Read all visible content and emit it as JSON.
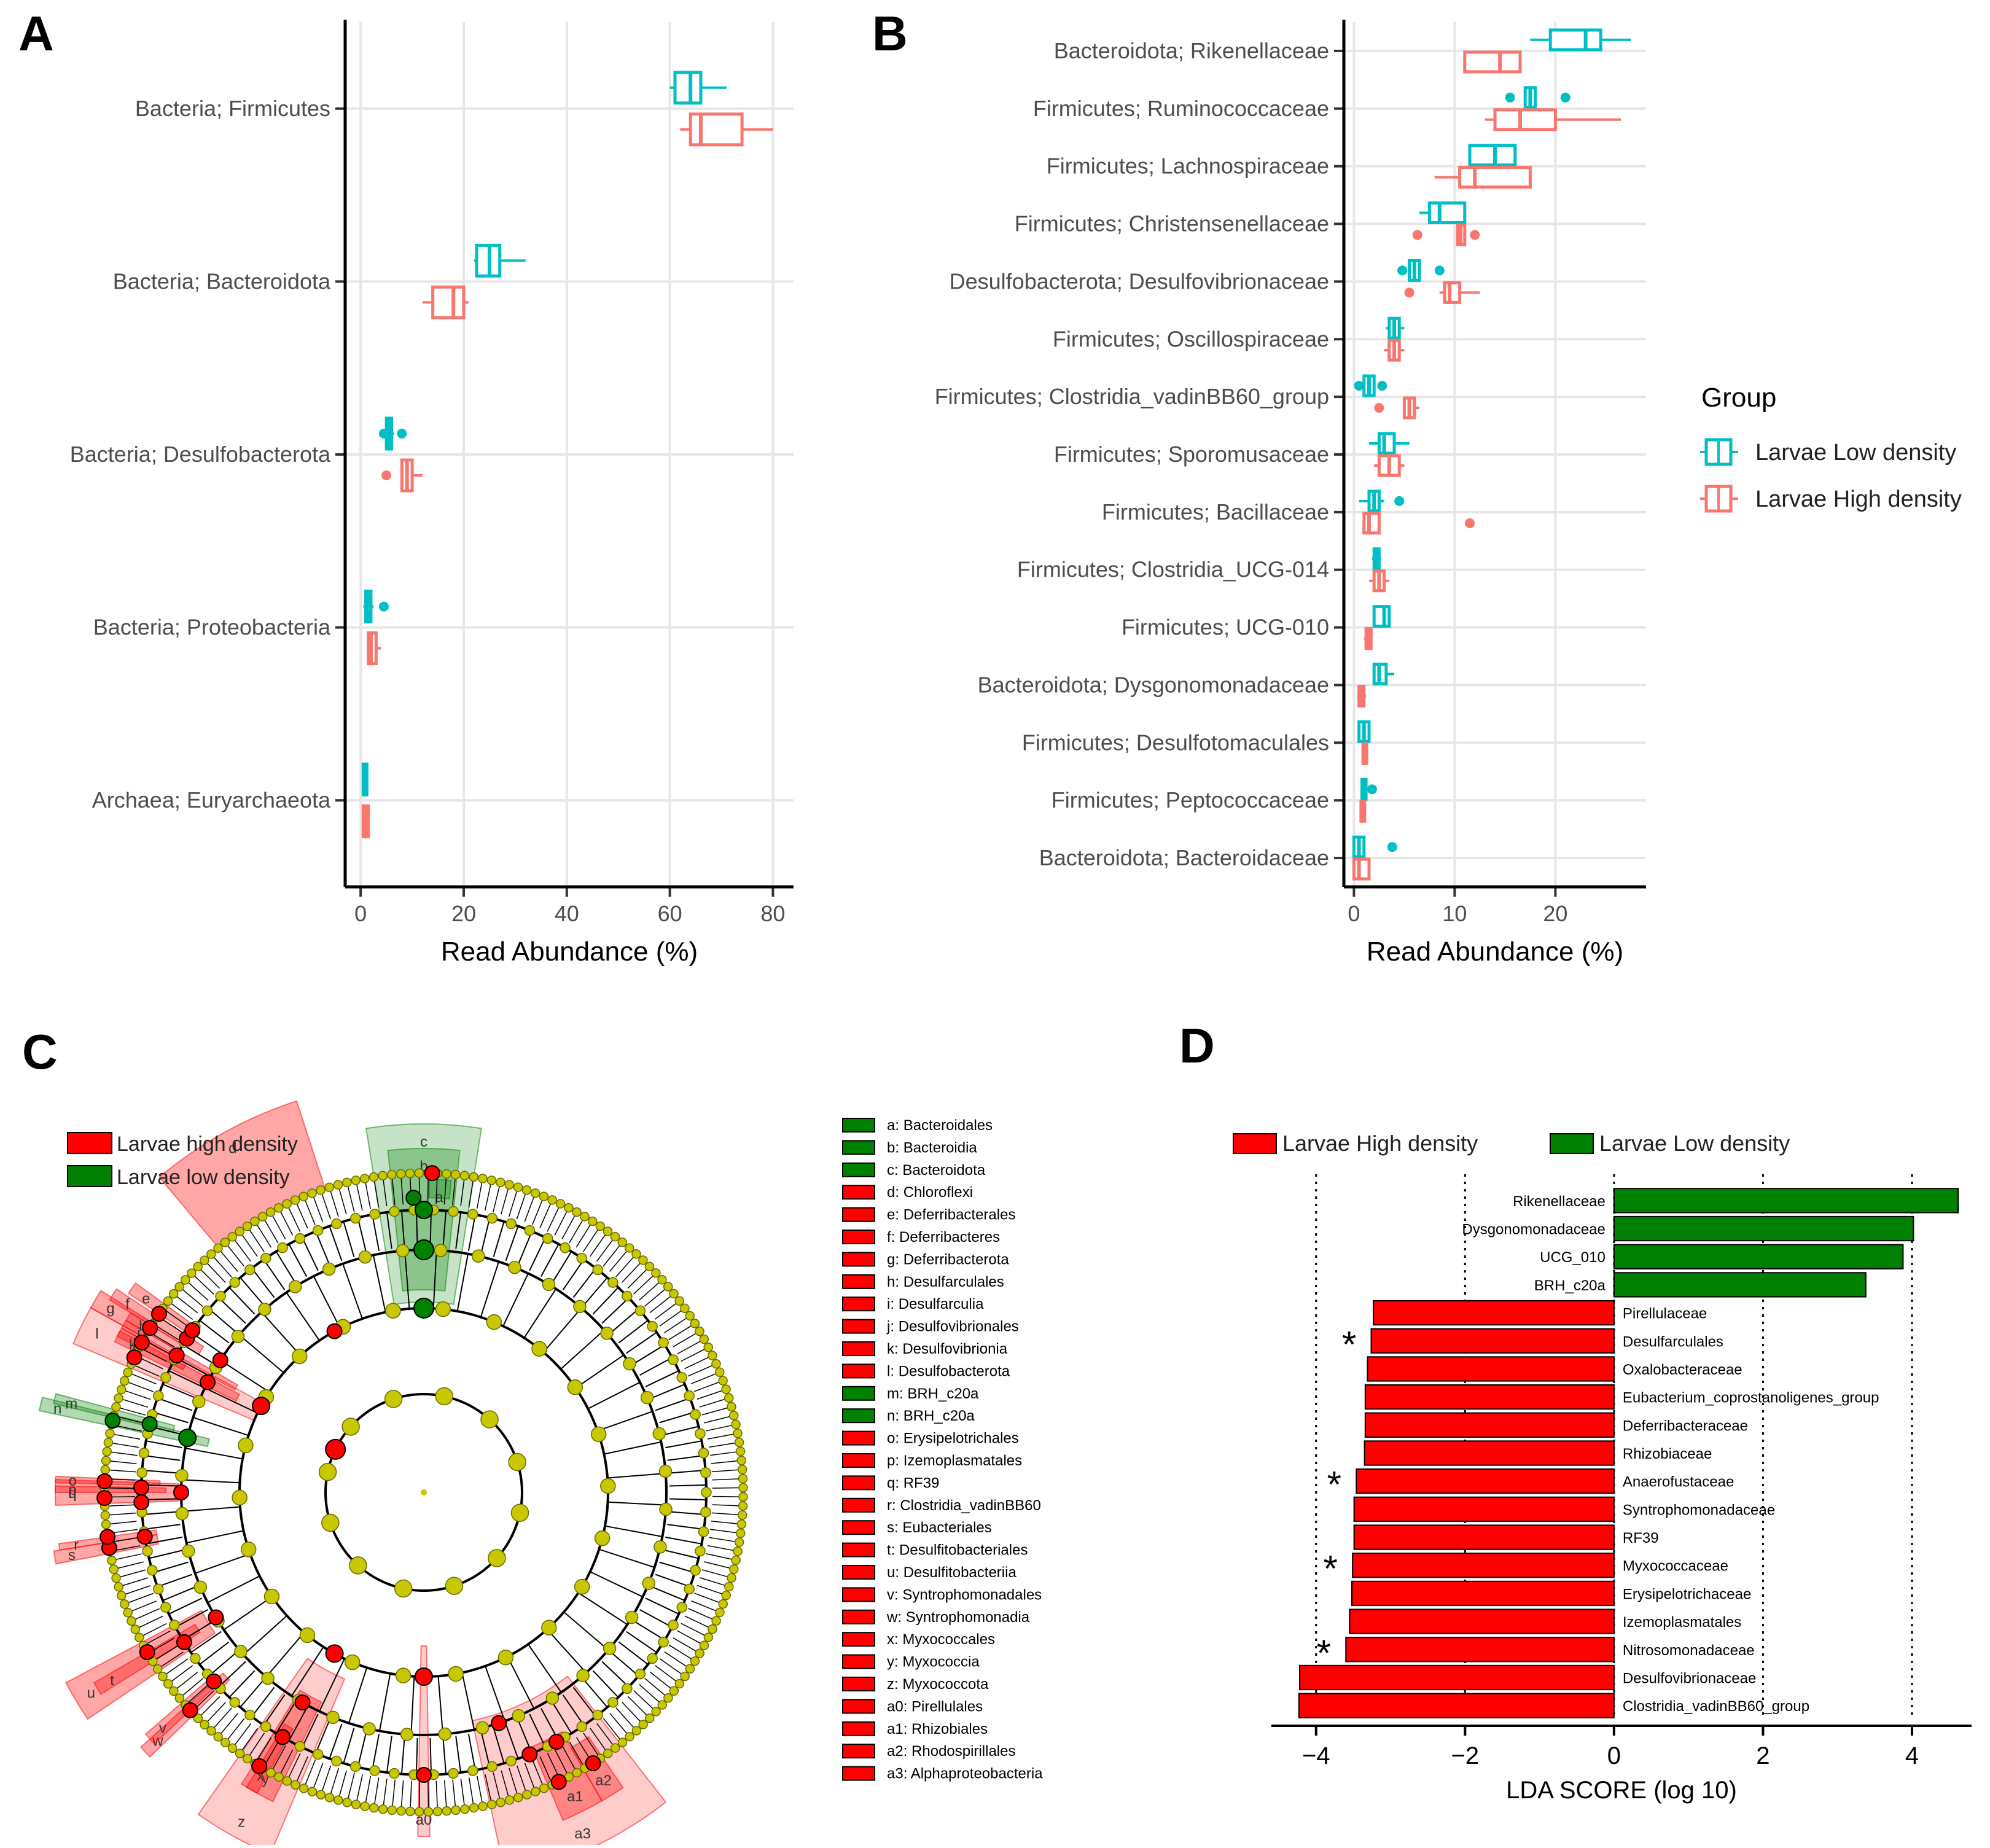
{
  "panels": {
    "A": "A",
    "B": "B",
    "C": "C",
    "D": "D"
  },
  "colors": {
    "low": "#00BFC4",
    "high": "#F8766D",
    "lefse_high": "#FF0000",
    "lefse_low": "#008000",
    "node": "#C8C800"
  },
  "chart_data": [
    {
      "id": "A",
      "type": "boxplot",
      "xlabel": "Read Abundance (%)",
      "xlim": [
        -3,
        84
      ],
      "xticks": [
        0,
        20,
        40,
        60,
        80
      ],
      "categories": [
        "Bacteria; Firmicutes",
        "Bacteria; Bacteroidota",
        "Bacteria; Desulfobacterota",
        "Bacteria; Proteobacteria",
        "Archaea; Euryarchaeota"
      ],
      "series": [
        {
          "name": "Larvae Low  density",
          "boxes": [
            {
              "wmin": 60,
              "q1": 61,
              "med": 64,
              "q3": 66,
              "wmax": 71,
              "out": []
            },
            {
              "wmin": 22,
              "q1": 22.5,
              "med": 25,
              "q3": 27,
              "wmax": 32,
              "out": []
            },
            {
              "wmin": 4.5,
              "q1": 5,
              "med": 5.5,
              "q3": 6,
              "wmax": 6.5,
              "out": [
                4.5,
                8
              ]
            },
            {
              "wmin": 0.5,
              "q1": 1,
              "med": 1.5,
              "q3": 2,
              "wmax": 2.5,
              "out": [
                4.5
              ]
            },
            {
              "wmin": 0.3,
              "q1": 0.5,
              "med": 0.8,
              "q3": 1,
              "wmax": 1.2,
              "out": []
            }
          ]
        },
        {
          "name": "Larvae High  density",
          "boxes": [
            {
              "wmin": 62,
              "q1": 64,
              "med": 66,
              "q3": 74,
              "wmax": 80,
              "out": []
            },
            {
              "wmin": 12,
              "q1": 14,
              "med": 18,
              "q3": 20,
              "wmax": 21,
              "out": []
            },
            {
              "wmin": 8,
              "q1": 8,
              "med": 9,
              "q3": 10,
              "wmax": 12,
              "out": [
                5
              ]
            },
            {
              "wmin": 1.5,
              "q1": 1.5,
              "med": 2,
              "q3": 3,
              "wmax": 4,
              "out": []
            },
            {
              "wmin": 0.5,
              "q1": 0.5,
              "med": 1,
              "q3": 1.5,
              "wmax": 1.7,
              "out": []
            }
          ]
        }
      ]
    },
    {
      "id": "B",
      "type": "boxplot",
      "xlabel": "Read Abundance (%)",
      "xlim": [
        -1,
        29
      ],
      "xticks": [
        0,
        10,
        20
      ],
      "categories": [
        "Bacteroidota; Rikenellaceae",
        "Firmicutes; Ruminococcaceae",
        "Firmicutes; Lachnospiraceae",
        "Firmicutes; Christensenellaceae",
        "Desulfobacterota; Desulfovibrionaceae",
        "Firmicutes; Oscillospiraceae",
        "Firmicutes; Clostridia_vadinBB60_group",
        "Firmicutes; Sporomusaceae",
        "Firmicutes; Bacillaceae",
        "Firmicutes; Clostridia_UCG-014",
        "Firmicutes; UCG-010",
        "Bacteroidota; Dysgonomonadaceae",
        "Firmicutes; Desulfotomaculales",
        "Firmicutes; Peptococcaceae",
        "Bacteroidota; Bacteroidaceae"
      ],
      "series": [
        {
          "name": "Larvae Low  density",
          "boxes": [
            {
              "wmin": 17.5,
              "q1": 19.5,
              "med": 23,
              "q3": 24.5,
              "wmax": 27.5,
              "out": []
            },
            {
              "wmin": 17,
              "q1": 17,
              "med": 17.5,
              "q3": 18,
              "wmax": 18,
              "out": [
                15.5,
                21
              ]
            },
            {
              "wmin": 11.5,
              "q1": 11.5,
              "med": 14,
              "q3": 16,
              "wmax": 16,
              "out": []
            },
            {
              "wmin": 6.5,
              "q1": 7.5,
              "med": 8.5,
              "q3": 11,
              "wmax": 11,
              "out": []
            },
            {
              "wmin": 5.5,
              "q1": 5.5,
              "med": 6,
              "q3": 6.5,
              "wmax": 6.5,
              "out": [
                4.8,
                8.5
              ]
            },
            {
              "wmin": 3.2,
              "q1": 3.5,
              "med": 4,
              "q3": 4.5,
              "wmax": 5,
              "out": []
            },
            {
              "wmin": 1,
              "q1": 1,
              "med": 1.5,
              "q3": 2,
              "wmax": 2,
              "out": [
                0.5,
                2.8
              ]
            },
            {
              "wmin": 1.5,
              "q1": 2.5,
              "med": 3,
              "q3": 4,
              "wmax": 5.5,
              "out": []
            },
            {
              "wmin": 0.5,
              "q1": 1.5,
              "med": 2,
              "q3": 2.5,
              "wmax": 3,
              "out": [
                4.5
              ]
            },
            {
              "wmin": 1.8,
              "q1": 2,
              "med": 2.2,
              "q3": 2.5,
              "wmax": 2.7,
              "out": []
            },
            {
              "wmin": 2,
              "q1": 2,
              "med": 3,
              "q3": 3.5,
              "wmax": 3.5,
              "out": []
            },
            {
              "wmin": 2,
              "q1": 2,
              "med": 2.5,
              "q3": 3.2,
              "wmax": 4,
              "out": []
            },
            {
              "wmin": 0.5,
              "q1": 0.5,
              "med": 1,
              "q3": 1.5,
              "wmax": 1.5,
              "out": []
            },
            {
              "wmin": 0.7,
              "q1": 0.8,
              "med": 1,
              "q3": 1.2,
              "wmax": 1.3,
              "out": [
                1.8
              ]
            },
            {
              "wmin": 0,
              "q1": 0,
              "med": 0.5,
              "q3": 1,
              "wmax": 1,
              "out": [
                3.8
              ]
            }
          ]
        },
        {
          "name": "Larvae High  density",
          "boxes": [
            {
              "wmin": 11,
              "q1": 11,
              "med": 14.5,
              "q3": 16.5,
              "wmax": 16.5,
              "out": []
            },
            {
              "wmin": 13,
              "q1": 14,
              "med": 16.5,
              "q3": 20,
              "wmax": 26.5,
              "out": []
            },
            {
              "wmin": 8,
              "q1": 10.5,
              "med": 12,
              "q3": 17.5,
              "wmax": 17.5,
              "out": []
            },
            {
              "wmin": 10.3,
              "q1": 10.3,
              "med": 10.6,
              "q3": 11,
              "wmax": 11,
              "out": [
                6.3,
                12
              ]
            },
            {
              "wmin": 8.5,
              "q1": 9,
              "med": 9.5,
              "q3": 10.5,
              "wmax": 12.5,
              "out": [
                5.5
              ]
            },
            {
              "wmin": 3,
              "q1": 3.5,
              "med": 4,
              "q3": 4.5,
              "wmax": 5,
              "out": []
            },
            {
              "wmin": 5,
              "q1": 5,
              "med": 5.5,
              "q3": 6,
              "wmax": 6.5,
              "out": [
                2.5
              ]
            },
            {
              "wmin": 2,
              "q1": 2.5,
              "med": 3.5,
              "q3": 4.5,
              "wmax": 5,
              "out": []
            },
            {
              "wmin": 1,
              "q1": 1,
              "med": 1.5,
              "q3": 2.5,
              "wmax": 2.5,
              "out": [
                11.5
              ]
            },
            {
              "wmin": 1.5,
              "q1": 2,
              "med": 2.5,
              "q3": 3,
              "wmax": 3.5,
              "out": []
            },
            {
              "wmin": 1,
              "q1": 1.2,
              "med": 1.5,
              "q3": 1.7,
              "wmax": 1.8,
              "out": []
            },
            {
              "wmin": 0.3,
              "q1": 0.5,
              "med": 0.8,
              "q3": 1,
              "wmax": 1.2,
              "out": []
            },
            {
              "wmin": 0.8,
              "q1": 0.9,
              "med": 1,
              "q3": 1.2,
              "wmax": 1.3,
              "out": []
            },
            {
              "wmin": 0.6,
              "q1": 0.7,
              "med": 0.8,
              "q3": 0.9,
              "wmax": 1,
              "out": []
            },
            {
              "wmin": 0,
              "q1": 0,
              "med": 0.5,
              "q3": 1.5,
              "wmax": 1.5,
              "out": []
            }
          ]
        }
      ]
    },
    {
      "id": "C",
      "type": "cladogram",
      "legend": [
        {
          "name": "Larvae  high  density",
          "group": "high"
        },
        {
          "name": "Larvae  low  density",
          "group": "low"
        }
      ],
      "labels": [
        {
          "key": "a",
          "name": "Bacteroidales",
          "group": "low"
        },
        {
          "key": "b",
          "name": "Bacteroidia",
          "group": "low"
        },
        {
          "key": "c",
          "name": "Bacteroidota",
          "group": "low"
        },
        {
          "key": "d",
          "name": "Chloroflexi",
          "group": "high"
        },
        {
          "key": "e",
          "name": "Deferribacterales",
          "group": "high"
        },
        {
          "key": "f",
          "name": "Deferribacteres",
          "group": "high"
        },
        {
          "key": "g",
          "name": "Deferribacterota",
          "group": "high"
        },
        {
          "key": "h",
          "name": "Desulfarculales",
          "group": "high"
        },
        {
          "key": "i",
          "name": "Desulfarculia",
          "group": "high"
        },
        {
          "key": "j",
          "name": "Desulfovibrionales",
          "group": "high"
        },
        {
          "key": "k",
          "name": "Desulfovibrionia",
          "group": "high"
        },
        {
          "key": "l",
          "name": "Desulfobacterota",
          "group": "high"
        },
        {
          "key": "m",
          "name": "BRH_c20a",
          "group": "low"
        },
        {
          "key": "n",
          "name": "BRH_c20a",
          "group": "low"
        },
        {
          "key": "o",
          "name": "Erysipelotrichales",
          "group": "high"
        },
        {
          "key": "p",
          "name": "Izemoplasmatales",
          "group": "high"
        },
        {
          "key": "q",
          "name": "RF39",
          "group": "high"
        },
        {
          "key": "r",
          "name": "Clostridia_vadinBB60",
          "group": "high"
        },
        {
          "key": "s",
          "name": "Eubacteriales",
          "group": "high"
        },
        {
          "key": "t",
          "name": "Desulfitobacteriales",
          "group": "high"
        },
        {
          "key": "u",
          "name": "Desulfitobacteriia",
          "group": "high"
        },
        {
          "key": "v",
          "name": "Syntrophomonadales",
          "group": "high"
        },
        {
          "key": "w",
          "name": "Syntrophomonadia",
          "group": "high"
        },
        {
          "key": "x",
          "name": "Myxococcales",
          "group": "high"
        },
        {
          "key": "y",
          "name": "Myxococcia",
          "group": "high"
        },
        {
          "key": "z",
          "name": "Myxococcota",
          "group": "high"
        },
        {
          "key": "a0",
          "name": "Pirellulales",
          "group": "high"
        },
        {
          "key": "a1",
          "name": "Rhizobiales",
          "group": "high"
        },
        {
          "key": "a2",
          "name": "Rhodospirillales",
          "group": "high"
        },
        {
          "key": "a3",
          "name": "Alphaproteobacteria",
          "group": "high"
        }
      ]
    },
    {
      "id": "D",
      "type": "bar",
      "orientation": "horizontal",
      "xlabel": "LDA SCORE (log 10)",
      "xlim": [
        -4.6,
        4.8
      ],
      "xticks": [
        -4,
        -2,
        0,
        2,
        4
      ],
      "xtick_labels": [
        "−4",
        "−2",
        "0",
        "2",
        "4"
      ],
      "legend": [
        {
          "name": "Larvae  High  density",
          "group": "high"
        },
        {
          "name": "Larvae  Low  density",
          "group": "low"
        }
      ],
      "categories": [
        "Rikenellaceae",
        "Dysgonomonadaceae",
        "UCG_010",
        "BRH_c20a",
        "Pirellulaceae",
        "Desulfarculales",
        "Oxalobacteraceae",
        "Eubacterium_coprostanoligenes_group",
        "Deferribacteraceae",
        "Rhizobiaceae",
        "Anaerofustaceae",
        "Syntrophomonadaceae",
        "RF39",
        "Myxococcaceae",
        "Erysipelotrichaceae",
        "Izemoplasmatales",
        "Nitrosomonadaceae",
        "Desulfovibrionaceae",
        "Clostridia_vadinBB60_group"
      ],
      "values": [
        4.62,
        4.02,
        3.88,
        3.38,
        -3.23,
        -3.26,
        -3.31,
        -3.34,
        -3.34,
        -3.35,
        -3.46,
        -3.49,
        -3.49,
        -3.51,
        -3.52,
        -3.55,
        -3.6,
        -4.22,
        -4.23
      ],
      "groups": [
        "low",
        "low",
        "low",
        "low",
        "high",
        "high",
        "high",
        "high",
        "high",
        "high",
        "high",
        "high",
        "high",
        "high",
        "high",
        "high",
        "high",
        "high",
        "high"
      ],
      "stars": [
        "",
        "",
        "",
        "",
        "",
        "*",
        "",
        "",
        "",
        "",
        "*",
        "",
        "",
        "*",
        "",
        "",
        "*",
        "",
        ""
      ]
    }
  ]
}
